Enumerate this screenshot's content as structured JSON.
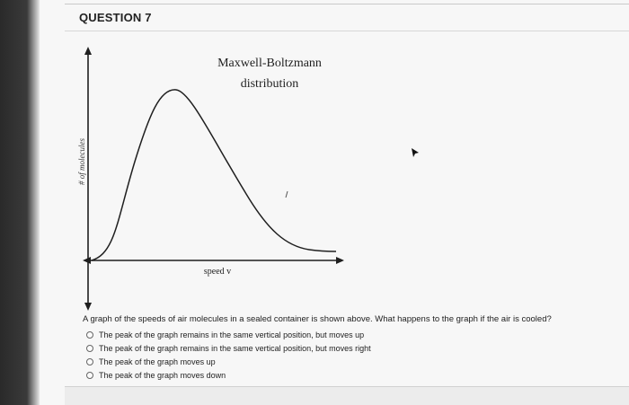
{
  "question": {
    "title": "QUESTION 7",
    "prompt": "A graph of the speeds of air molecules in a sealed container is shown above. What happens to the graph if the air is cooled?",
    "options": [
      "The peak of the graph remains in the same vertical position, but moves up",
      "The peak of the graph remains in the same vertical position, but moves right",
      "The peak of the graph moves up",
      "The peak of the graph moves down"
    ]
  },
  "graph": {
    "title_line1": "Maxwell-Boltzmann",
    "title_line2": "distribution",
    "y_axis_label": "# of molecules",
    "x_axis_label": "speed v"
  },
  "colors": {
    "text": "#222222",
    "line": "#1f1f1f"
  }
}
